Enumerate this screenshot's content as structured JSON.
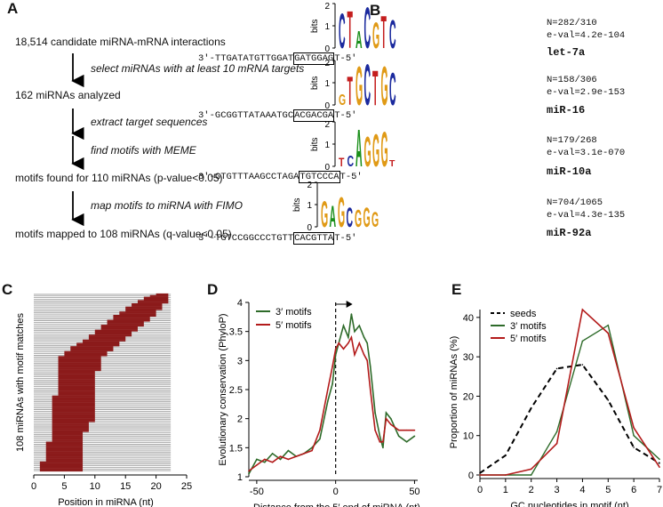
{
  "panel_labels": {
    "a": "A",
    "b": "B",
    "c": "C",
    "d": "D",
    "e": "E"
  },
  "flowchart": {
    "steps": [
      "18,514 candidate miRNA-mRNA interactions",
      "162 miRNAs analyzed",
      "motifs found for 110 miRNAs (p-value<0.05)",
      "motifs mapped to 108 miRNAs (q-value<0.05)"
    ],
    "arrows": [
      "select miRNAs with at least 10 mRNA targets",
      "extract target sequences",
      "find motifs with MEME",
      "map motifs to miRNA with FIMO"
    ]
  },
  "motifs": {
    "bits_label": "bits",
    "items": [
      {
        "sequence": "3′-TTGATATGTTGGAT[GATGGAG]T-5′",
        "seq_prefix": "3′-TTGATATGTTGGAT",
        "seq_box": "GATGGAG",
        "seq_suffix": "T-5′",
        "n": "N=282/310",
        "eval": "e-val=4.2e-104",
        "mirna": "let-7a",
        "ymax": "2",
        "ymid": "1",
        "ymin": "0",
        "letters": [
          "C",
          "T",
          "A",
          "C",
          "G",
          "T",
          "C"
        ]
      },
      {
        "sequence": "3′-GCGGTTATAAATGC[ACGACGA]T-5′",
        "seq_prefix": "3′-GCGGTTATAAATGC",
        "seq_box": "ACGACGA",
        "seq_suffix": "T-5′",
        "n": "N=158/306",
        "eval": "e-val=2.9e-153",
        "mirna": "miR-16",
        "ymax": "2",
        "ymid": "1",
        "ymin": "0",
        "letters": [
          "G",
          "T",
          "G",
          "C",
          "T",
          "G",
          "C"
        ]
      },
      {
        "sequence": "3′-GTGTTTAAGCCTAGA[TGTCCCA]T-5′",
        "seq_prefix": "3′-GTGTTTAAGCCTAGA",
        "seq_box": "TGTCCCA",
        "seq_suffix": "T-5′",
        "n": "N=179/268",
        "eval": "e-val=3.1e-070",
        "mirna": "miR-10a",
        "ymax": "2",
        "ymid": "1",
        "ymin": "0",
        "letters": [
          "T",
          "C",
          "A",
          "G",
          "G",
          "G",
          "T"
        ]
      },
      {
        "sequence": "3′-TGTCCGGCCCTGTT[CACGTTA]T-5′",
        "seq_prefix": "3′-TGTCCGGCCCTGTT",
        "seq_box": "CACGTTA",
        "seq_suffix": "T-5′",
        "n": "N=704/1065",
        "eval": "e-val=4.3e-135",
        "mirna": "miR-92a",
        "ymax": "2",
        "ymid": "1",
        "ymin": "0",
        "letters": [
          "G",
          "A",
          "G",
          "C",
          "G",
          "G",
          "G"
        ]
      }
    ]
  },
  "panel_c": {
    "ylabel": "108 miRNAs with motif matches",
    "xlabel": "Position in miRNA (nt)",
    "xticks": [
      "0",
      "5",
      "10",
      "15",
      "20",
      "25"
    ]
  },
  "panel_d": {
    "ylabel": "Evolutionary conservation (PhyloP)",
    "xlabel": "Distance from the 5′ end of miRNA (nt)",
    "legend": [
      "3′ motifs",
      "5′ motifs"
    ],
    "xticks": [
      "-50",
      "0",
      "50"
    ],
    "yticks": [
      "1",
      "1.5",
      "2",
      "2.5",
      "3",
      "3.5",
      "4"
    ]
  },
  "panel_e": {
    "ylabel": "Proportion of miRNAs (%)",
    "xlabel": "GC nucleotides in motif (nt)",
    "legend": [
      "seeds",
      "3′ motifs",
      "5′ motifs"
    ],
    "xticks": [
      "0",
      "1",
      "2",
      "3",
      "4",
      "5",
      "6",
      "7"
    ],
    "yticks": [
      "0",
      "10",
      "20",
      "30",
      "40"
    ]
  },
  "colors": {
    "three_prime": "#2e6b2a",
    "five_prime": "#b31b1b",
    "seeds": "#000000",
    "bar": "#8b1a1a",
    "A": "#1a8f1a",
    "C": "#1b2a9e",
    "G": "#e09a16",
    "T": "#c41e1e"
  },
  "chart_data": [
    {
      "type": "bar",
      "title": "",
      "xlabel": "Position in miRNA (nt)",
      "ylabel": "108 miRNAs with motif matches",
      "xlim": [
        0,
        25
      ],
      "description_series": [
        {
          "name": "motif span start (nt)",
          "values": [
            1,
            1,
            1,
            1,
            1,
            1,
            2,
            2,
            2,
            2,
            2,
            2,
            2,
            2,
            2,
            2,
            2,
            2,
            3,
            3,
            3,
            3,
            3,
            3,
            3,
            3,
            3,
            3,
            3,
            3,
            3,
            3,
            3,
            3,
            3,
            3,
            3,
            3,
            3,
            3,
            3,
            3,
            3,
            3,
            3,
            3,
            4,
            4,
            4,
            4,
            4,
            4,
            4,
            4,
            4,
            4,
            4,
            4,
            4,
            4,
            4,
            4,
            4,
            4,
            4,
            4,
            4,
            4,
            4,
            4,
            5,
            5,
            5,
            6,
            6,
            6,
            7,
            7,
            8,
            8,
            9,
            9,
            9,
            10,
            10,
            10,
            11,
            11,
            11,
            12,
            12,
            12,
            13,
            13,
            13,
            14,
            14,
            15,
            15,
            15,
            16,
            16,
            17,
            17,
            18,
            18,
            19,
            20
          ]
        },
        {
          "name": "motif span end (nt)",
          "values": [
            8,
            8,
            8,
            8,
            8,
            8,
            8,
            8,
            8,
            8,
            8,
            8,
            8,
            8,
            8,
            8,
            8,
            8,
            8,
            8,
            8,
            8,
            8,
            8,
            9,
            9,
            9,
            9,
            9,
            9,
            10,
            10,
            10,
            10,
            10,
            10,
            10,
            10,
            10,
            10,
            10,
            10,
            10,
            10,
            10,
            10,
            10,
            10,
            10,
            10,
            10,
            10,
            10,
            10,
            10,
            10,
            10,
            10,
            10,
            10,
            10,
            11,
            11,
            11,
            11,
            11,
            11,
            11,
            11,
            11,
            12,
            12,
            12,
            13,
            13,
            13,
            14,
            14,
            14,
            15,
            15,
            15,
            16,
            16,
            16,
            17,
            17,
            17,
            18,
            18,
            18,
            19,
            19,
            19,
            20,
            20,
            20,
            20,
            21,
            21,
            21,
            21,
            22,
            22,
            22,
            22,
            22,
            22
          ]
        }
      ]
    },
    {
      "type": "line",
      "title": "",
      "xlabel": "Distance from the 5′ end of miRNA (nt)",
      "ylabel": "Evolutionary conservation (PhyloP)",
      "xlim": [
        -55,
        52
      ],
      "ylim": [
        1,
        4
      ],
      "x": [
        -55,
        -50,
        -45,
        -40,
        -35,
        -30,
        -25,
        -20,
        -15,
        -10,
        -5,
        -2,
        0,
        2,
        5,
        8,
        10,
        12,
        15,
        18,
        20,
        22,
        25,
        28,
        30,
        32,
        35,
        40,
        45,
        50
      ],
      "series": [
        {
          "name": "3′ motifs",
          "values": [
            1.05,
            1.3,
            1.25,
            1.4,
            1.3,
            1.45,
            1.35,
            1.4,
            1.5,
            1.65,
            2.3,
            2.6,
            3.1,
            3.3,
            3.6,
            3.4,
            3.8,
            3.5,
            3.6,
            3.4,
            3.3,
            2.9,
            2.1,
            1.7,
            1.5,
            2.1,
            2.0,
            1.7,
            1.6,
            1.7
          ]
        },
        {
          "name": "5′ motifs",
          "values": [
            1.1,
            1.2,
            1.3,
            1.25,
            1.35,
            1.3,
            1.35,
            1.4,
            1.45,
            1.8,
            2.5,
            2.9,
            3.2,
            3.3,
            3.2,
            3.3,
            3.4,
            3.1,
            3.3,
            3.1,
            3.0,
            2.5,
            1.8,
            1.6,
            1.6,
            2.0,
            1.9,
            1.8,
            1.8,
            1.8
          ]
        }
      ]
    },
    {
      "type": "line",
      "title": "",
      "xlabel": "GC nucleotides in motif (nt)",
      "ylabel": "Proportion of miRNAs (%)",
      "xlim": [
        0,
        7
      ],
      "ylim": [
        0,
        42
      ],
      "x": [
        0,
        1,
        2,
        3,
        4,
        5,
        6,
        7
      ],
      "series": [
        {
          "name": "seeds",
          "values": [
            0.5,
            5,
            17,
            27,
            28,
            19,
            7,
            3
          ]
        },
        {
          "name": "3′ motifs",
          "values": [
            0,
            0,
            0,
            11,
            34,
            38,
            10,
            4
          ]
        },
        {
          "name": "5′ motifs",
          "values": [
            0,
            0,
            1.5,
            8,
            42,
            36,
            12,
            2
          ]
        }
      ]
    }
  ]
}
